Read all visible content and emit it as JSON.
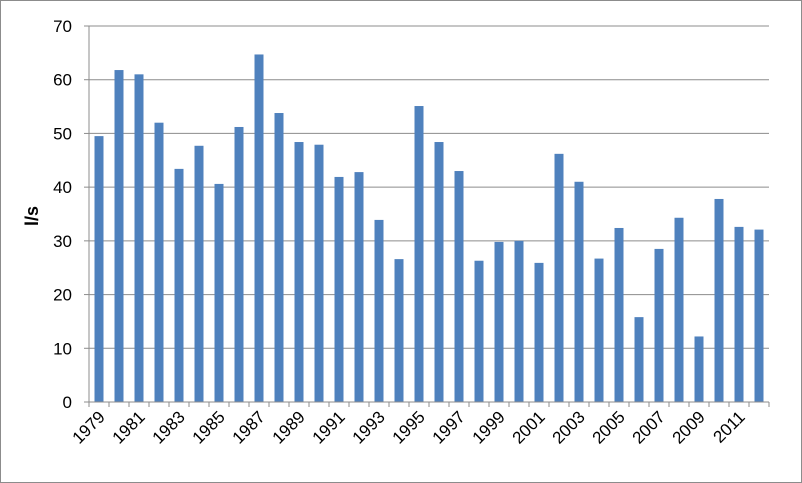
{
  "chart_data": {
    "type": "bar",
    "title": "",
    "xlabel": "",
    "ylabel": "l/s",
    "ylim": [
      0,
      70
    ],
    "yticks": [
      0,
      10,
      20,
      30,
      40,
      50,
      60,
      70
    ],
    "grid": true,
    "legend": "none",
    "bar_color": "#4f81bd",
    "categories": [
      "1979",
      "1980",
      "1981",
      "1982",
      "1983",
      "1984",
      "1985",
      "1986",
      "1987",
      "1988",
      "1989",
      "1990",
      "1991",
      "1992",
      "1993",
      "1994",
      "1995",
      "1996",
      "1997",
      "1998",
      "1999",
      "2000",
      "2001",
      "2002",
      "2003",
      "2004",
      "2005",
      "2006",
      "2007",
      "2008",
      "2009",
      "2010",
      "2011",
      "2012"
    ],
    "tick_labels": [
      "1979",
      "1981",
      "1983",
      "1985",
      "1987",
      "1989",
      "1991",
      "1993",
      "1995",
      "1997",
      "1999",
      "2001",
      "2003",
      "2005",
      "2007",
      "2009",
      "2011"
    ],
    "values": [
      49.5,
      61.8,
      61.0,
      52.0,
      43.4,
      47.7,
      40.6,
      51.2,
      64.7,
      53.8,
      48.4,
      47.9,
      41.9,
      42.8,
      33.9,
      26.6,
      55.1,
      48.4,
      43.0,
      26.3,
      29.8,
      30.0,
      25.9,
      46.2,
      41.0,
      26.7,
      32.4,
      15.8,
      28.5,
      34.3,
      12.2,
      37.8,
      32.6,
      32.1
    ]
  }
}
